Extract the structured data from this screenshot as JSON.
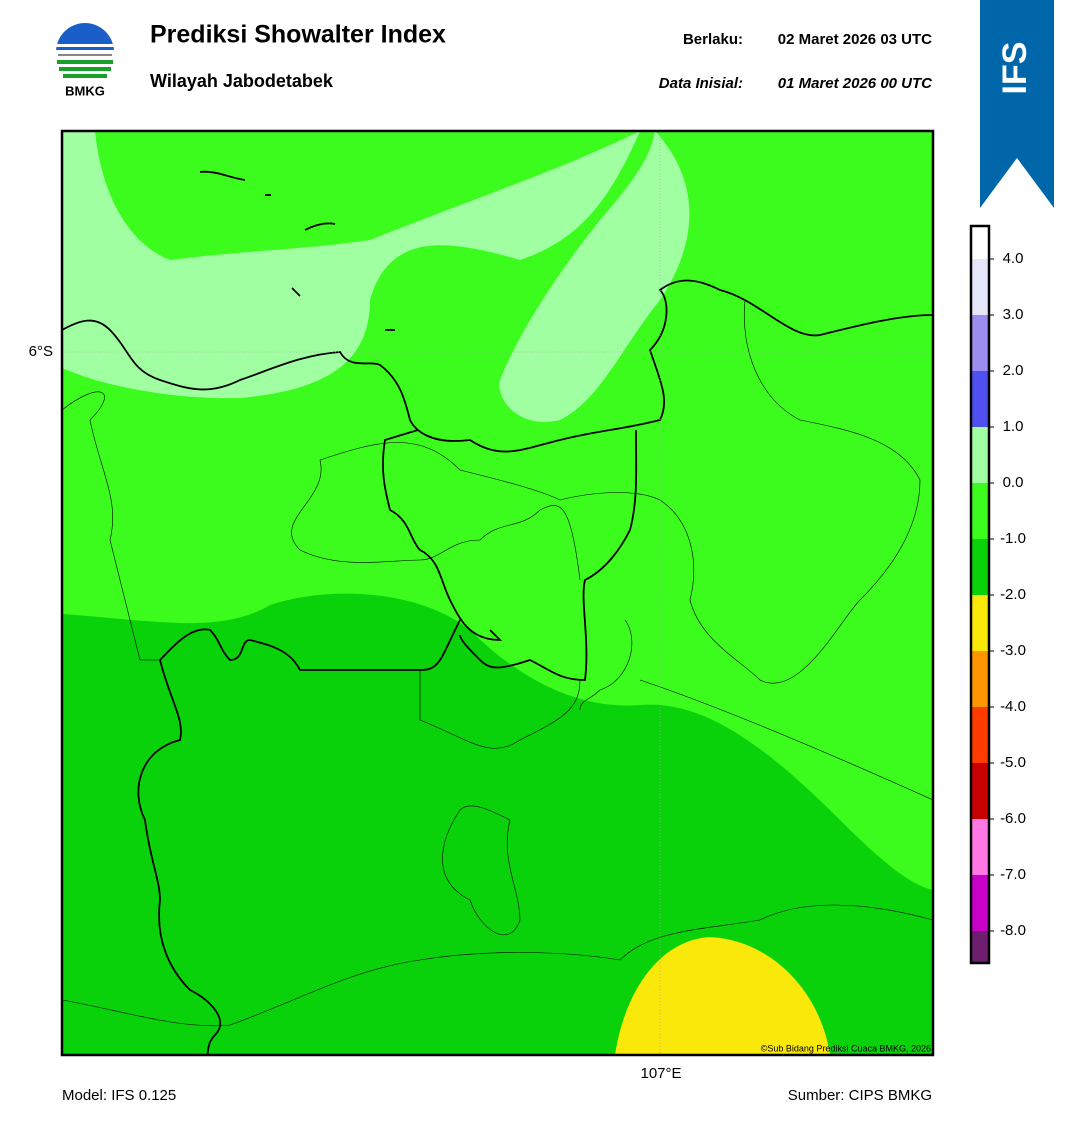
{
  "header": {
    "logo_text": "BMKG",
    "title": "Prediksi Showalter Index",
    "subtitle": "Wilayah Jabodetabek",
    "valid_label": "Berlaku:",
    "valid_value": "02 Maret 2026 03 UTC",
    "init_label": "Data Inisial:",
    "init_value": "01 Maret 2026 00 UTC",
    "badge": "IFS"
  },
  "map": {
    "lat_label": "6°S",
    "lon_label": "107°E",
    "copyright": "©Sub Bidang Prediksi Cuaca BMKG, 2026"
  },
  "colorbar": {
    "labels": [
      "4.0",
      "3.0",
      "2.0",
      "1.0",
      "0.0",
      "-1.0",
      "-2.0",
      "-3.0",
      "-4.0",
      "-5.0",
      "-6.0",
      "-7.0",
      "-8.0"
    ],
    "colors": [
      "#ffffff",
      "#e6e6fa",
      "#9b8cf0",
      "#5050f0",
      "#a0ffa0",
      "#3cfc1e",
      "#0ad20a",
      "#fae80a",
      "#ff9600",
      "#ff3c00",
      "#c80000",
      "#ff78e6",
      "#c800c8",
      "#6e1e6e"
    ]
  },
  "footer": {
    "model": "Model: IFS 0.125",
    "source": "Sumber: CIPS BMKG"
  }
}
